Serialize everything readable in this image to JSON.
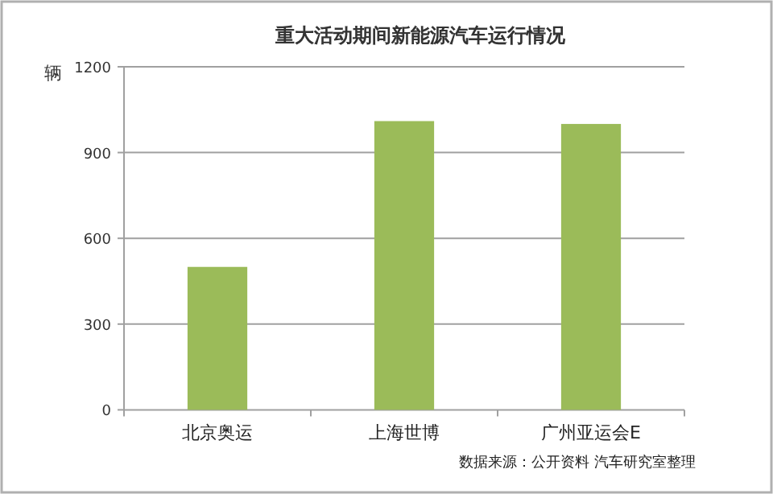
{
  "chart_data": {
    "type": "bar",
    "title": "重大活动期间新能源汽车运行情况",
    "ylabel": "辆",
    "categories": [
      "北京奥运",
      "上海世博",
      "广州亚运会E"
    ],
    "values": [
      500,
      1010,
      1000
    ],
    "color": "#9bbb59",
    "ylim": [
      0,
      1200
    ],
    "yticks": [
      0,
      300,
      600,
      900,
      1200
    ],
    "grid": "y",
    "annotations": [
      "数据来源：公开资料  汽车研究室整理"
    ]
  }
}
